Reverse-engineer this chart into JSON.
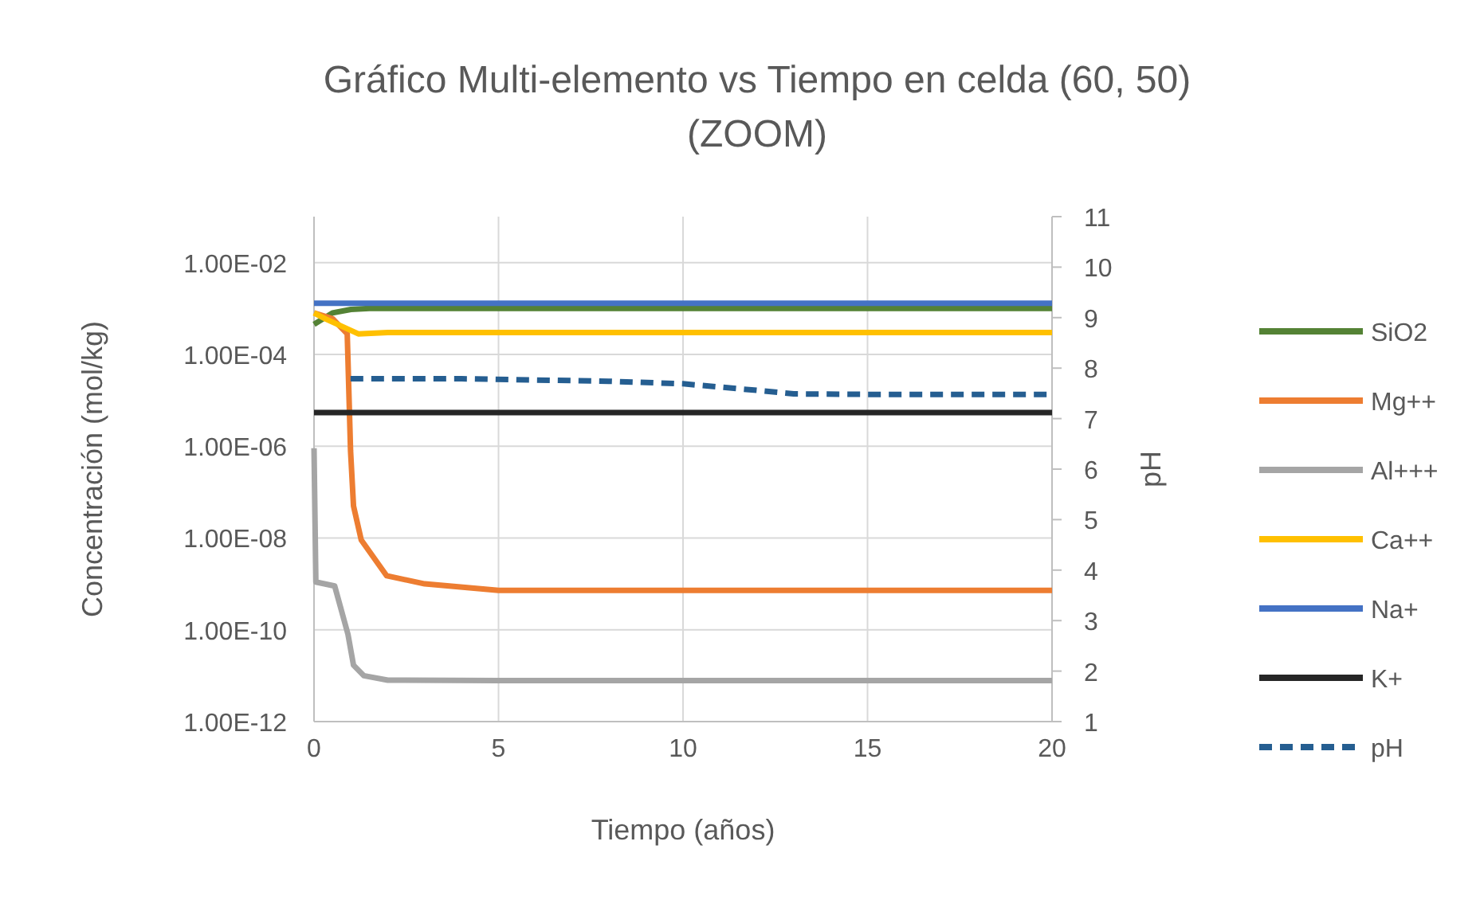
{
  "chart_data": {
    "type": "line",
    "title": "Gráfico Multi-elemento vs Tiempo en celda (60, 50)\n(ZOOM)",
    "xlabel": "Tiempo (años)",
    "ylabel": "Concentración (mol/kg)",
    "y2label": "pH",
    "log": "y",
    "grid": true,
    "legend": "right",
    "xlim": [
      0,
      20
    ],
    "xticks": [
      0,
      5,
      10,
      15,
      20
    ],
    "ylim": [
      1e-12,
      0.1
    ],
    "yticks": [
      {
        "value": 1e-12,
        "label": "1.00E-12"
      },
      {
        "value": 1e-10,
        "label": "1.00E-10"
      },
      {
        "value": 1e-08,
        "label": "1.00E-08"
      },
      {
        "value": 1e-06,
        "label": "1.00E-06"
      },
      {
        "value": 0.0001,
        "label": "1.00E-04"
      },
      {
        "value": 0.01,
        "label": "1.00E-02"
      }
    ],
    "y2lim": [
      1,
      11
    ],
    "y2ticks": [
      1,
      2,
      3,
      4,
      5,
      6,
      7,
      8,
      9,
      10,
      11
    ],
    "series": [
      {
        "name": "SiO2",
        "color": "#548235",
        "x": [
          0,
          0.5,
          1,
          1.5,
          2,
          5,
          10,
          20
        ],
        "values": [
          0.00045,
          0.0008,
          0.00095,
          0.001,
          0.001,
          0.001,
          0.001,
          0.001
        ]
      },
      {
        "name": "Mg++",
        "color": "#ed7d31",
        "x": [
          0,
          0.5,
          0.9,
          0.99,
          1.07,
          1.28,
          1.97,
          3,
          5,
          10,
          20
        ],
        "values": [
          0.0008,
          0.0006,
          0.00028,
          8e-07,
          5e-08,
          9e-09,
          1.5e-09,
          1e-09,
          7.2e-10,
          7.2e-10,
          7.2e-10
        ]
      },
      {
        "name": "Al+++",
        "color": "#a5a5a5",
        "x": [
          0,
          0.05,
          0.56,
          0.92,
          1.07,
          1.35,
          2,
          5,
          10,
          20
        ],
        "values": [
          9e-07,
          1.1e-09,
          9e-10,
          8e-11,
          1.7e-11,
          1e-11,
          8e-12,
          7.8e-12,
          7.8e-12,
          7.8e-12
        ]
      },
      {
        "name": "Ca++",
        "color": "#ffc000",
        "x": [
          0,
          0.3,
          1.2,
          2,
          5,
          10,
          20
        ],
        "values": [
          0.0008,
          0.0006,
          0.00028,
          0.0003,
          0.0003,
          0.0003,
          0.0003
        ]
      },
      {
        "name": "Na+",
        "color": "#4472c4",
        "x": [
          0,
          1,
          5,
          10,
          20
        ],
        "values": [
          0.0013,
          0.0013,
          0.0013,
          0.0013,
          0.0013
        ]
      },
      {
        "name": "K+",
        "color": "#262626",
        "x": [
          0,
          5,
          10,
          20
        ],
        "values": [
          5.4e-06,
          5.4e-06,
          5.4e-06,
          5.4e-06
        ]
      },
      {
        "name": "pH",
        "color": "#255e91",
        "axis": "y2",
        "line_style": "dashed",
        "x": [
          0.99,
          4,
          8,
          10,
          12,
          13,
          15,
          20
        ],
        "values": [
          7.79,
          7.79,
          7.74,
          7.69,
          7.56,
          7.49,
          7.48,
          7.48
        ]
      }
    ]
  }
}
